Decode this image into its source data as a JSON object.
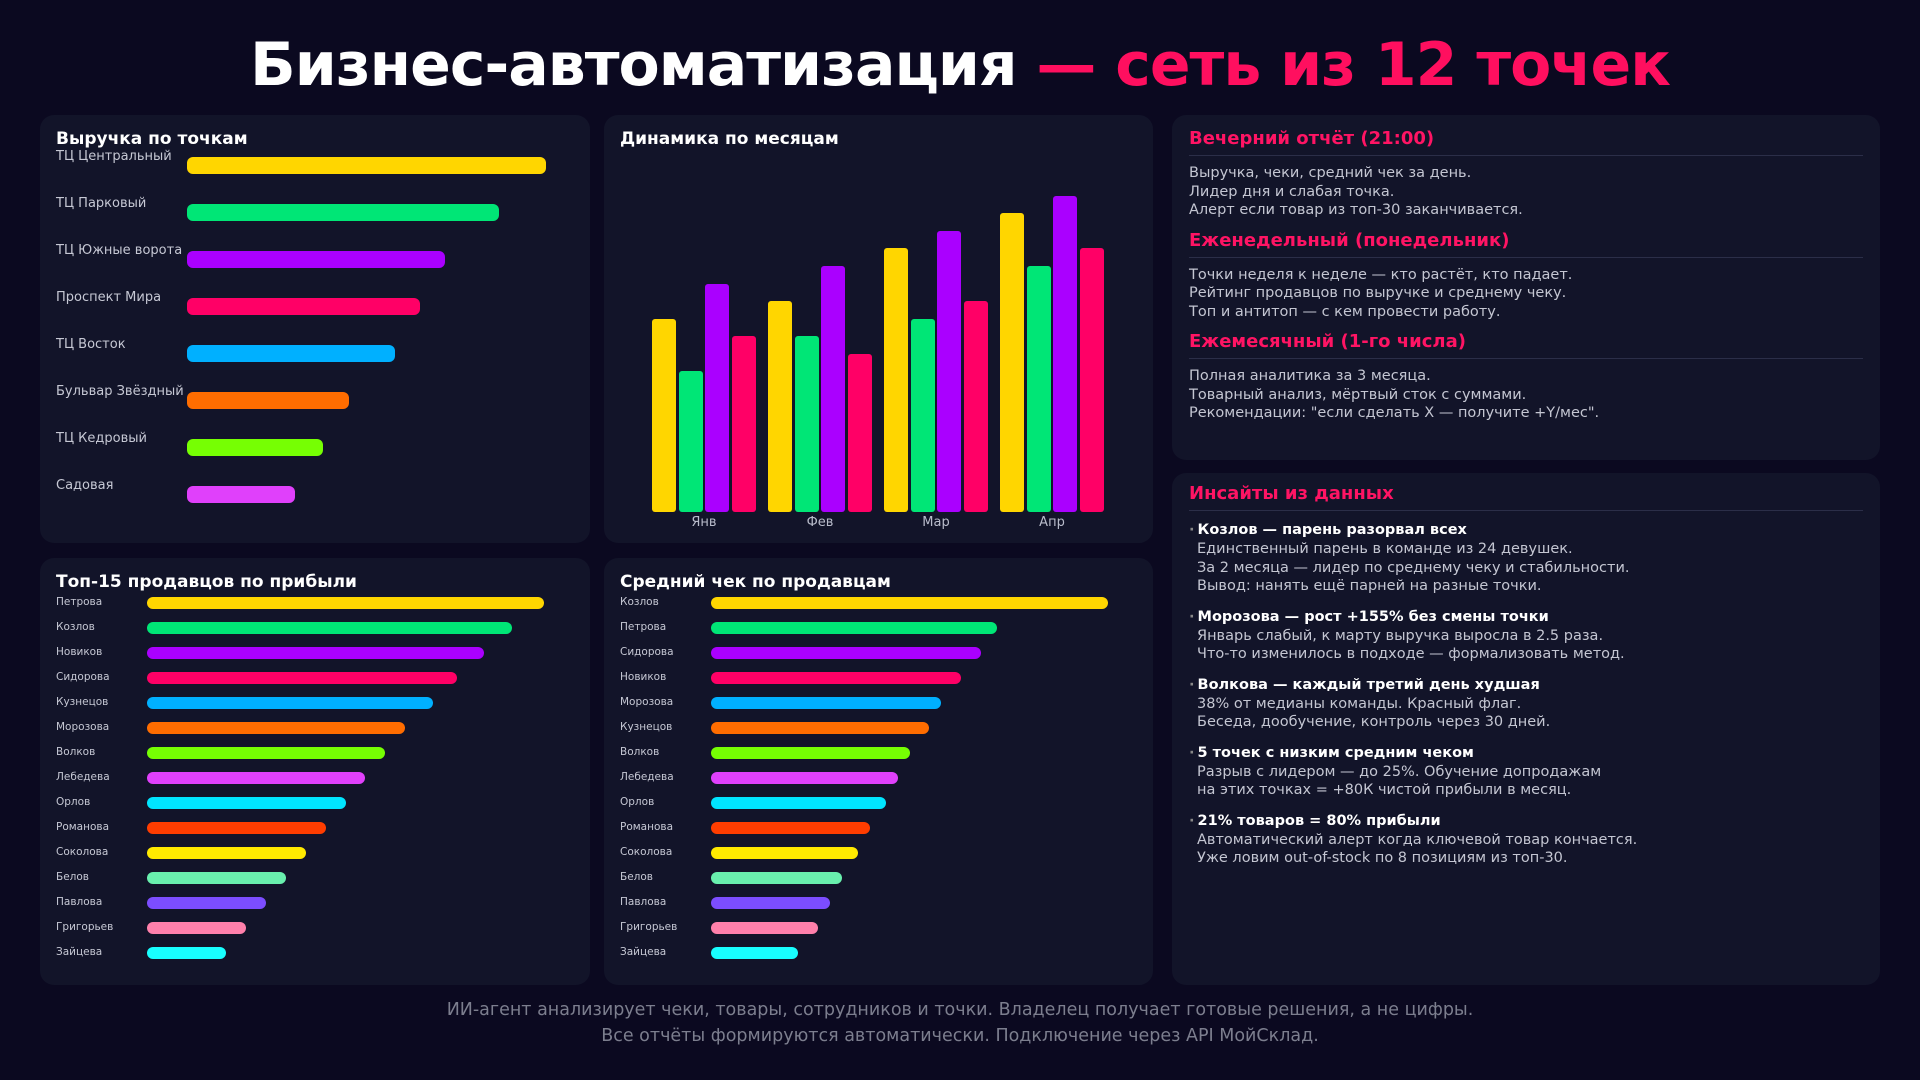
{
  "title": {
    "main": "Бизнес-автоматизация",
    "accent": "— сеть из 12 точек"
  },
  "colors": [
    "#FFD600",
    "#00E676",
    "#AA00FF",
    "#FF0066",
    "#00B0FF",
    "#FF6D00",
    "#76FF03",
    "#E040FB",
    "#00E5FF",
    "#FF3D00",
    "#FFEA00",
    "#69F0AE",
    "#7C4DFF",
    "#FF80AB",
    "#18FFFF"
  ],
  "chart_data": [
    {
      "type": "bar",
      "orientation": "horizontal",
      "title": "Выручка по точкам",
      "categories": [
        "ТЦ Центральный",
        "ТЦ Парковый",
        "ТЦ Южные ворота",
        "Проспект Мира",
        "ТЦ Восток",
        "Бульвар Звёздный",
        "ТЦ Кедровый",
        "Садовая"
      ],
      "values": [
        100,
        87,
        72,
        65,
        58,
        45,
        38,
        30
      ],
      "value_unit": "relative %"
    },
    {
      "type": "bar",
      "orientation": "vertical",
      "title": "Динамика по месяцам",
      "categories": [
        "Янв",
        "Фев",
        "Мар",
        "Апр"
      ],
      "series": [
        {
          "values": [
            11,
            12,
            15,
            17
          ]
        },
        {
          "values": [
            8,
            10,
            11,
            14
          ]
        },
        {
          "values": [
            13,
            14,
            16,
            18
          ]
        },
        {
          "values": [
            10,
            9,
            12,
            15
          ]
        }
      ],
      "ylim": [
        0,
        21
      ],
      "grid": false,
      "value_unit": "relative"
    },
    {
      "type": "bar",
      "orientation": "horizontal",
      "title": "Топ-15 продавцов по прибыли",
      "categories": [
        "Петрова",
        "Козлов",
        "Новиков",
        "Сидорова",
        "Кузнецов",
        "Морозова",
        "Волков",
        "Лебедева",
        "Орлов",
        "Романова",
        "Соколова",
        "Белов",
        "Павлова",
        "Григорьев",
        "Зайцева"
      ],
      "values": [
        100,
        92,
        85,
        78,
        72,
        65,
        60,
        55,
        50,
        45,
        40,
        35,
        30,
        25,
        20
      ],
      "value_unit": "relative %"
    },
    {
      "type": "bar",
      "orientation": "horizontal",
      "title": "Средний чек по продавцам",
      "categories": [
        "Козлов",
        "Петрова",
        "Сидорова",
        "Новиков",
        "Морозова",
        "Кузнецов",
        "Волков",
        "Лебедева",
        "Орлов",
        "Романова",
        "Соколова",
        "Белов",
        "Павлова",
        "Григорьев",
        "Зайцева"
      ],
      "values": [
        100,
        72,
        68,
        63,
        58,
        55,
        50,
        47,
        44,
        40,
        37,
        33,
        30,
        27,
        22
      ],
      "value_unit": "relative %"
    }
  ],
  "reports": [
    {
      "heading": "Вечерний отчёт (21:00)",
      "lines": [
        "Выручка, чеки, средний чек за день.",
        "Лидер дня и слабая точка.",
        "Алерт если товар из топ-30 заканчивается."
      ]
    },
    {
      "heading": "Еженедельный (понедельник)",
      "lines": [
        "Точки неделя к неделе — кто растёт, кто падает.",
        "Рейтинг продавцов по выручке и среднему чеку.",
        "Топ и антитоп — с кем провести работу."
      ]
    },
    {
      "heading": "Ежемесячный (1-го числа)",
      "lines": [
        "Полная аналитика за 3 месяца.",
        "Товарный анализ, мёртвый сток с суммами.",
        "Рекомендации: \"если сделать X — получите +Y/мес\"."
      ]
    }
  ],
  "insights": {
    "heading": "Инсайты из данных",
    "items": [
      {
        "title": "Козлов — парень разорвал всех",
        "lines": [
          "Единственный парень в команде из 24 девушек.",
          "За 2 месяца — лидер по среднему чеку и стабильности.",
          "Вывод: нанять ещё парней на разные точки."
        ]
      },
      {
        "title": "Морозова — рост +155% без смены точки",
        "lines": [
          "Январь слабый, к марту выручка выросла в 2.5 раза.",
          "Что-то изменилось в подходе — формализовать метод."
        ]
      },
      {
        "title": "Волкова — каждый третий день худшая",
        "lines": [
          "38% от медианы команды. Красный флаг.",
          "Беседа, дообучение, контроль через 30 дней."
        ]
      },
      {
        "title": "5 точек с низким средним чеком",
        "lines": [
          "Разрыв с лидером — до 25%. Обучение допродажам",
          "на этих точках = +80К чистой прибыли в месяц."
        ]
      },
      {
        "title": "21% товаров = 80% прибыли",
        "lines": [
          "Автоматический алерт когда ключевой товар кончается.",
          "Уже ловим out-of-stock по 8 позициям из топ-30."
        ]
      }
    ]
  },
  "footer": [
    "ИИ-агент анализирует чеки, товары, сотрудников и точки. Владелец получает готовые решения, а не цифры.",
    "Все отчёты формируются автоматически. Подключение через API МойСклад."
  ]
}
